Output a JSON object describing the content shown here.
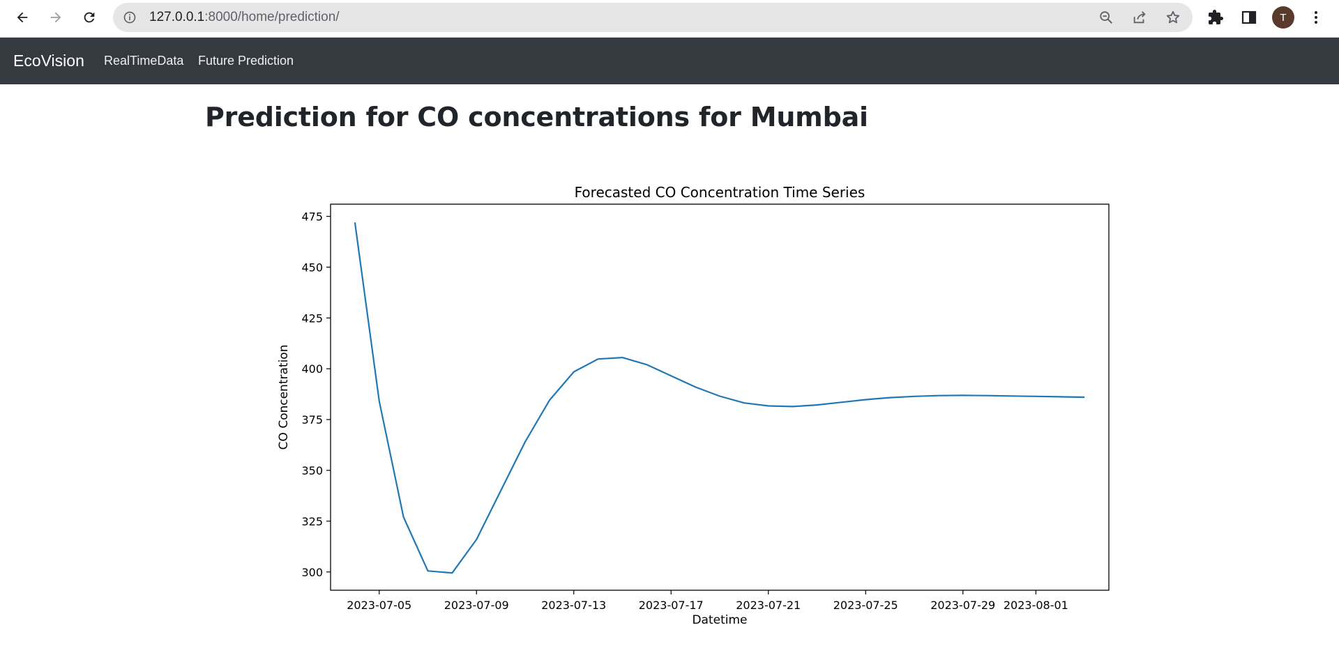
{
  "browser": {
    "url_host": "127.0.0.1",
    "url_path": ":8000/home/prediction/",
    "profile_initial": "T",
    "icons": {
      "back": "back-arrow-icon",
      "forward": "forward-arrow-icon",
      "reload": "reload-icon",
      "info": "info-icon",
      "zoom": "zoom-out-icon",
      "share": "share-icon",
      "bookmark": "star-icon",
      "extensions": "puzzle-icon",
      "side_panel": "side-panel-icon",
      "menu": "kebab-menu-icon"
    }
  },
  "navbar": {
    "brand": "EcoVision",
    "links": [
      "RealTimeData",
      "Future Prediction"
    ],
    "background": "#343a40"
  },
  "page": {
    "title": "Prediction for CO concentrations for Mumbai"
  },
  "chart_data": {
    "type": "line",
    "title": "Forecasted CO Concentration Time Series",
    "xlabel": "Datetime",
    "ylabel": "CO Concentration",
    "x_ticks": [
      "2023-07-05",
      "2023-07-09",
      "2023-07-13",
      "2023-07-17",
      "2023-07-21",
      "2023-07-25",
      "2023-07-29",
      "2023-08-01"
    ],
    "y_ticks": [
      300,
      325,
      350,
      375,
      400,
      425,
      450,
      475
    ],
    "xlim": [
      "2023-07-03",
      "2023-08-04"
    ],
    "ylim": [
      291,
      481
    ],
    "grid": false,
    "line_color": "#1f77b4",
    "series": [
      {
        "x": [
          "2023-07-04",
          "2023-07-05",
          "2023-07-06",
          "2023-07-07",
          "2023-07-08",
          "2023-07-09",
          "2023-07-10",
          "2023-07-11",
          "2023-07-12",
          "2023-07-13",
          "2023-07-14",
          "2023-07-15",
          "2023-07-16",
          "2023-07-17",
          "2023-07-18",
          "2023-07-19",
          "2023-07-20",
          "2023-07-21",
          "2023-07-22",
          "2023-07-23",
          "2023-07-24",
          "2023-07-25",
          "2023-07-26",
          "2023-07-27",
          "2023-07-28",
          "2023-07-29",
          "2023-07-30",
          "2023-07-31",
          "2023-08-01",
          "2023-08-02",
          "2023-08-03"
        ],
        "values": [
          472,
          384,
          327,
          300.5,
          299.5,
          316,
          340,
          364,
          384.5,
          398.5,
          404.8,
          405.5,
          402,
          396.5,
          391,
          386.5,
          383.2,
          381.7,
          381.4,
          382.2,
          383.5,
          384.8,
          385.8,
          386.4,
          386.8,
          386.9,
          386.8,
          386.6,
          386.4,
          386.2,
          386
        ]
      }
    ]
  }
}
